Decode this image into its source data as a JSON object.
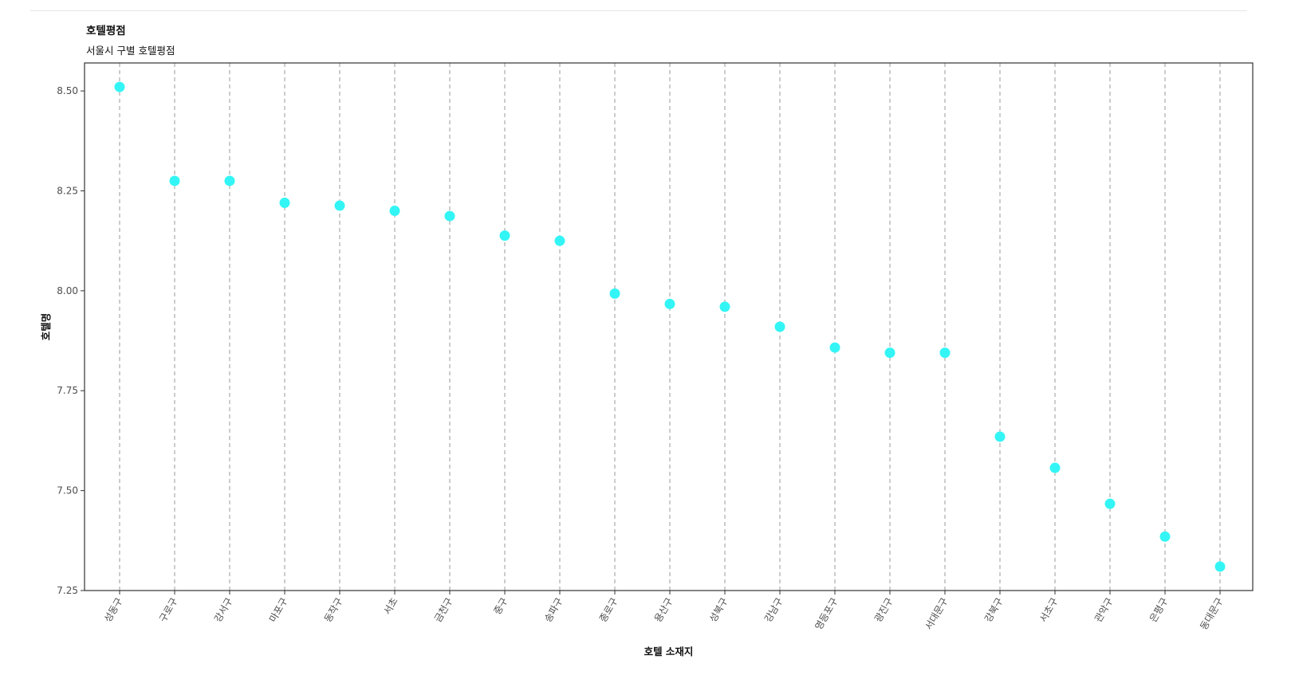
{
  "chart_data": {
    "type": "scatter",
    "title": "호텔평점",
    "subtitle": "서울시 구별 호텔평점",
    "xlabel": "호텔 소재지",
    "ylabel": "호텔명",
    "categories": [
      "성동구",
      "구로구",
      "강서구",
      "마포구",
      "동작구",
      "서초",
      "금천구",
      "중구",
      "송파구",
      "종로구",
      "용산구",
      "성북구",
      "강남구",
      "영등포구",
      "광진구",
      "서대문구",
      "강북구",
      "서초구",
      "관악구",
      "은평구",
      "동대문구"
    ],
    "values": [
      8.51,
      8.275,
      8.275,
      8.22,
      8.213,
      8.2,
      8.187,
      8.138,
      8.125,
      7.993,
      7.967,
      7.96,
      7.91,
      7.858,
      7.845,
      7.845,
      7.635,
      7.557,
      7.467,
      7.385,
      7.31
    ],
    "ylim": [
      7.25,
      8.57
    ],
    "yticks": [
      7.25,
      7.5,
      7.75,
      8.0,
      8.25,
      8.5
    ],
    "ytick_labels": [
      "7.25",
      "7.50",
      "7.75",
      "8.00",
      "8.25",
      "8.50"
    ],
    "point_color": "#33F5F5",
    "guide_line_color": "#999999",
    "grid": false,
    "legend": "none"
  }
}
